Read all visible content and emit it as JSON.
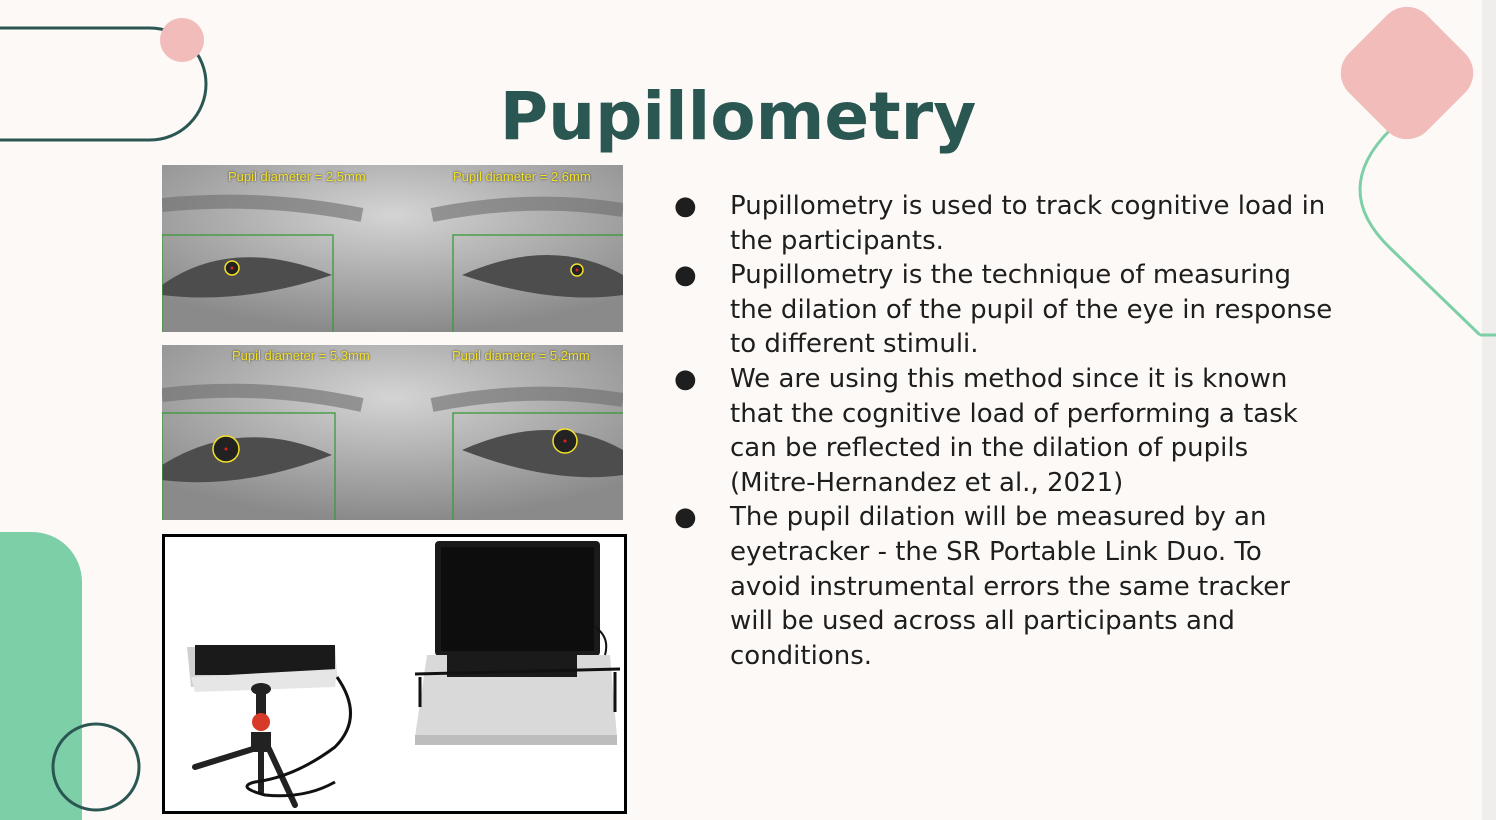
{
  "slide": {
    "title": "Pupillometry"
  },
  "eye_images": [
    {
      "left_label": "Pupil diameter = 2,5mm",
      "right_label": "Pupil diameter = 2,6mm"
    },
    {
      "left_label": "Pupil diameter = 5,3mm",
      "right_label": "Pupil diameter = 5,2mm"
    }
  ],
  "bullet_marker": "●",
  "bullets": [
    "Pupillometry is used to track cognitive load in the participants.",
    "Pupillometry is the technique of measuring the dilation of the pupil of the eye in response to different stimuli.",
    "We are using this method since it is known that the cognitive load of performing a task can be reflected in the dilation of pupils (Mitre-Hernandez et al., 2021)",
    "The pupil dilation will be measured by an eyetracker - the SR Portable Link Duo. To avoid instrumental errors the same tracker will be used across all participants and conditions."
  ],
  "colors": {
    "background": "#fdf9f6",
    "title": "#2b5753",
    "dark_teal": "#2b5753",
    "pink": "#f2bcbb",
    "mint": "#7dcfa7",
    "label_yellow": "#f3e12a",
    "roi_green": "#3a9a3a"
  },
  "icons": [
    "bullet-dot-icon"
  ]
}
